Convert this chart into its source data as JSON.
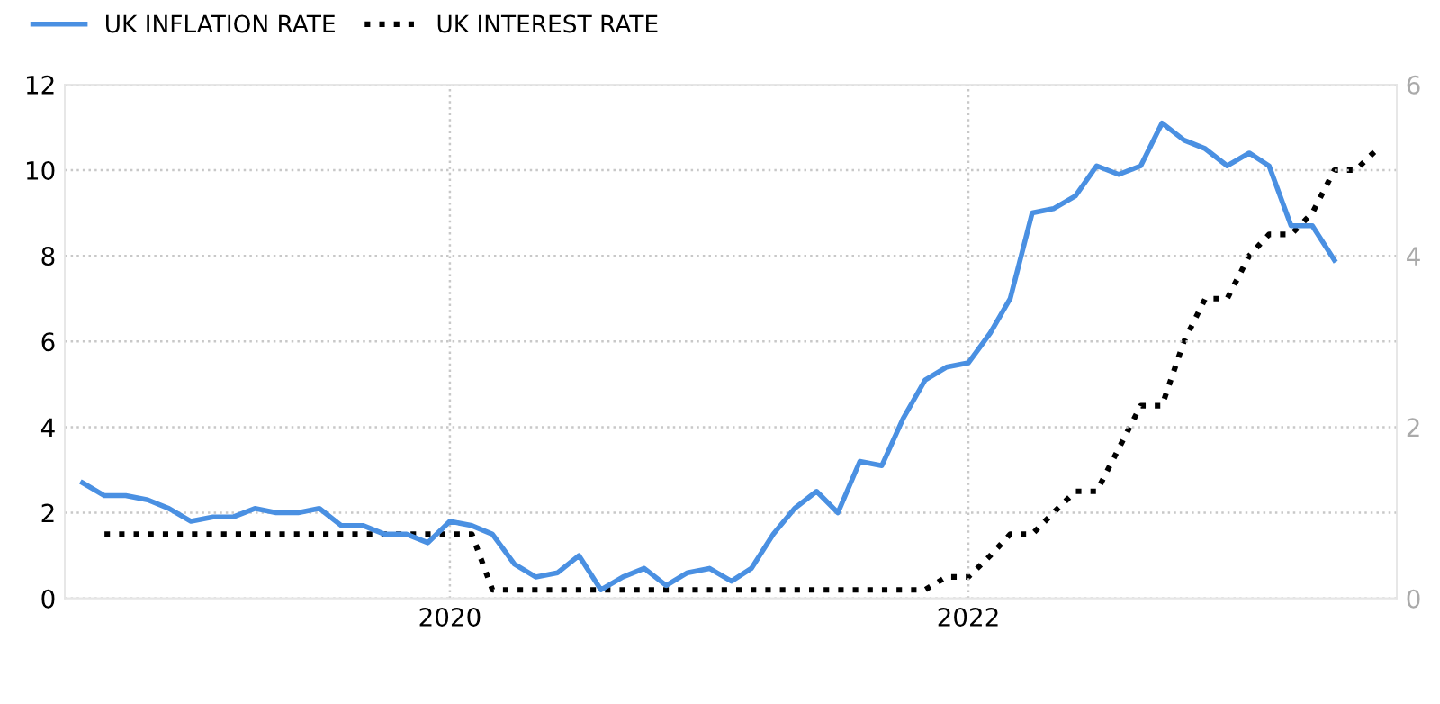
{
  "chart_data": {
    "type": "line",
    "x": [
      "2018-08",
      "2018-09",
      "2018-10",
      "2018-11",
      "2018-12",
      "2019-01",
      "2019-02",
      "2019-03",
      "2019-04",
      "2019-05",
      "2019-06",
      "2019-07",
      "2019-08",
      "2019-09",
      "2019-10",
      "2019-11",
      "2019-12",
      "2020-01",
      "2020-02",
      "2020-03",
      "2020-04",
      "2020-05",
      "2020-06",
      "2020-07",
      "2020-08",
      "2020-09",
      "2020-10",
      "2020-11",
      "2020-12",
      "2021-01",
      "2021-02",
      "2021-03",
      "2021-04",
      "2021-05",
      "2021-06",
      "2021-07",
      "2021-08",
      "2021-09",
      "2021-10",
      "2021-11",
      "2021-12",
      "2022-01",
      "2022-02",
      "2022-03",
      "2022-04",
      "2022-05",
      "2022-06",
      "2022-07",
      "2022-08",
      "2022-09",
      "2022-10",
      "2022-11",
      "2022-12",
      "2023-01",
      "2023-02",
      "2023-03",
      "2023-04",
      "2023-05",
      "2023-06"
    ],
    "series": [
      {
        "name": "UK INFLATION RATE",
        "color": "#4a90e2",
        "line_style": "solid",
        "values": [
          2.7,
          2.4,
          2.4,
          2.3,
          2.1,
          1.8,
          1.9,
          1.9,
          2.1,
          2.0,
          2.0,
          2.1,
          1.7,
          1.7,
          1.5,
          1.5,
          1.3,
          1.8,
          1.7,
          1.5,
          0.8,
          0.5,
          0.6,
          1.0,
          0.2,
          0.5,
          0.7,
          0.3,
          0.6,
          0.7,
          0.4,
          0.7,
          1.5,
          2.1,
          2.5,
          2.0,
          3.2,
          3.1,
          4.2,
          5.1,
          5.4,
          5.5,
          6.2,
          7.0,
          9.0,
          9.1,
          9.4,
          10.1,
          9.9,
          10.1,
          11.1,
          10.7,
          10.5,
          10.1,
          10.4,
          10.1,
          8.7,
          8.7,
          7.9
        ]
      },
      {
        "name": "UK INTEREST RATE",
        "color": "#000000",
        "line_style": "dotted",
        "axis": "y2",
        "x": [
          "2018-09",
          "2018-10",
          "2018-11",
          "2018-12",
          "2019-01",
          "2019-02",
          "2019-03",
          "2019-04",
          "2019-05",
          "2019-06",
          "2019-07",
          "2019-08",
          "2019-09",
          "2019-10",
          "2019-11",
          "2019-12",
          "2020-01",
          "2020-02",
          "2020-03",
          "2020-04",
          "2020-05",
          "2020-06",
          "2020-07",
          "2020-08",
          "2020-09",
          "2020-10",
          "2020-11",
          "2020-12",
          "2021-01",
          "2021-02",
          "2021-03",
          "2021-04",
          "2021-05",
          "2021-06",
          "2021-07",
          "2021-08",
          "2021-09",
          "2021-10",
          "2021-11",
          "2021-12",
          "2022-01",
          "2022-02",
          "2022-03",
          "2022-04",
          "2022-05",
          "2022-06",
          "2022-07",
          "2022-08",
          "2022-09",
          "2022-10",
          "2022-11",
          "2022-12",
          "2023-01",
          "2023-02",
          "2023-03",
          "2023-04",
          "2023-05",
          "2023-06",
          "2023-07",
          "2023-08"
        ],
        "values": [
          0.75,
          0.75,
          0.75,
          0.75,
          0.75,
          0.75,
          0.75,
          0.75,
          0.75,
          0.75,
          0.75,
          0.75,
          0.75,
          0.75,
          0.75,
          0.75,
          0.75,
          0.75,
          0.1,
          0.1,
          0.1,
          0.1,
          0.1,
          0.1,
          0.1,
          0.1,
          0.1,
          0.1,
          0.1,
          0.1,
          0.1,
          0.1,
          0.1,
          0.1,
          0.1,
          0.1,
          0.1,
          0.1,
          0.1,
          0.25,
          0.25,
          0.5,
          0.75,
          0.75,
          1.0,
          1.25,
          1.25,
          1.75,
          2.25,
          2.25,
          3.0,
          3.5,
          3.5,
          4.0,
          4.25,
          4.25,
          4.5,
          5.0,
          5.0,
          5.25
        ]
      }
    ],
    "xlim": [
      "2018-07-07",
      "2023-08-28"
    ],
    "xticks": [
      "2020",
      "2022"
    ],
    "ylim": [
      0,
      12
    ],
    "yticks": [
      0,
      2,
      4,
      6,
      8,
      10,
      12
    ],
    "y2lim": [
      0,
      6
    ],
    "y2ticks": [
      0,
      2,
      4,
      6
    ],
    "grid": true,
    "legend": "top left",
    "marker": "none"
  }
}
